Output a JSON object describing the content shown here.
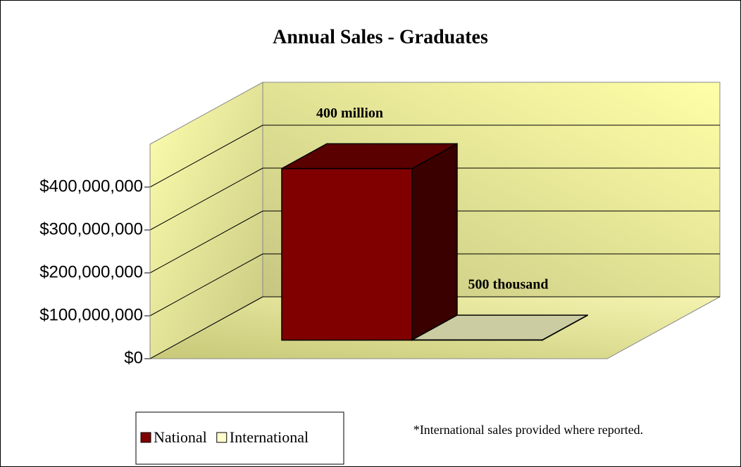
{
  "chart_data": {
    "type": "bar3d",
    "title": "Annual Sales - Graduates",
    "annotation": "*International sales provided where reported.",
    "series": [
      {
        "name": "National",
        "color": "#800000",
        "values": [
          400000000
        ],
        "value_labels": [
          "400 million"
        ]
      },
      {
        "name": "International",
        "color": "#ffffcc",
        "values": [
          500000
        ],
        "value_labels": [
          "500 thousand"
        ]
      }
    ],
    "ylim": [
      0,
      500000000
    ],
    "yticks": [
      {
        "value": 0,
        "label": "$0"
      },
      {
        "value": 100000000,
        "label": "$100,000,000"
      },
      {
        "value": 200000000,
        "label": "$200,000,000"
      },
      {
        "value": 300000000,
        "label": "$300,000,000"
      },
      {
        "value": 400000000,
        "label": "$400,000,000"
      }
    ],
    "grid": true,
    "legend": "bottom-left"
  }
}
